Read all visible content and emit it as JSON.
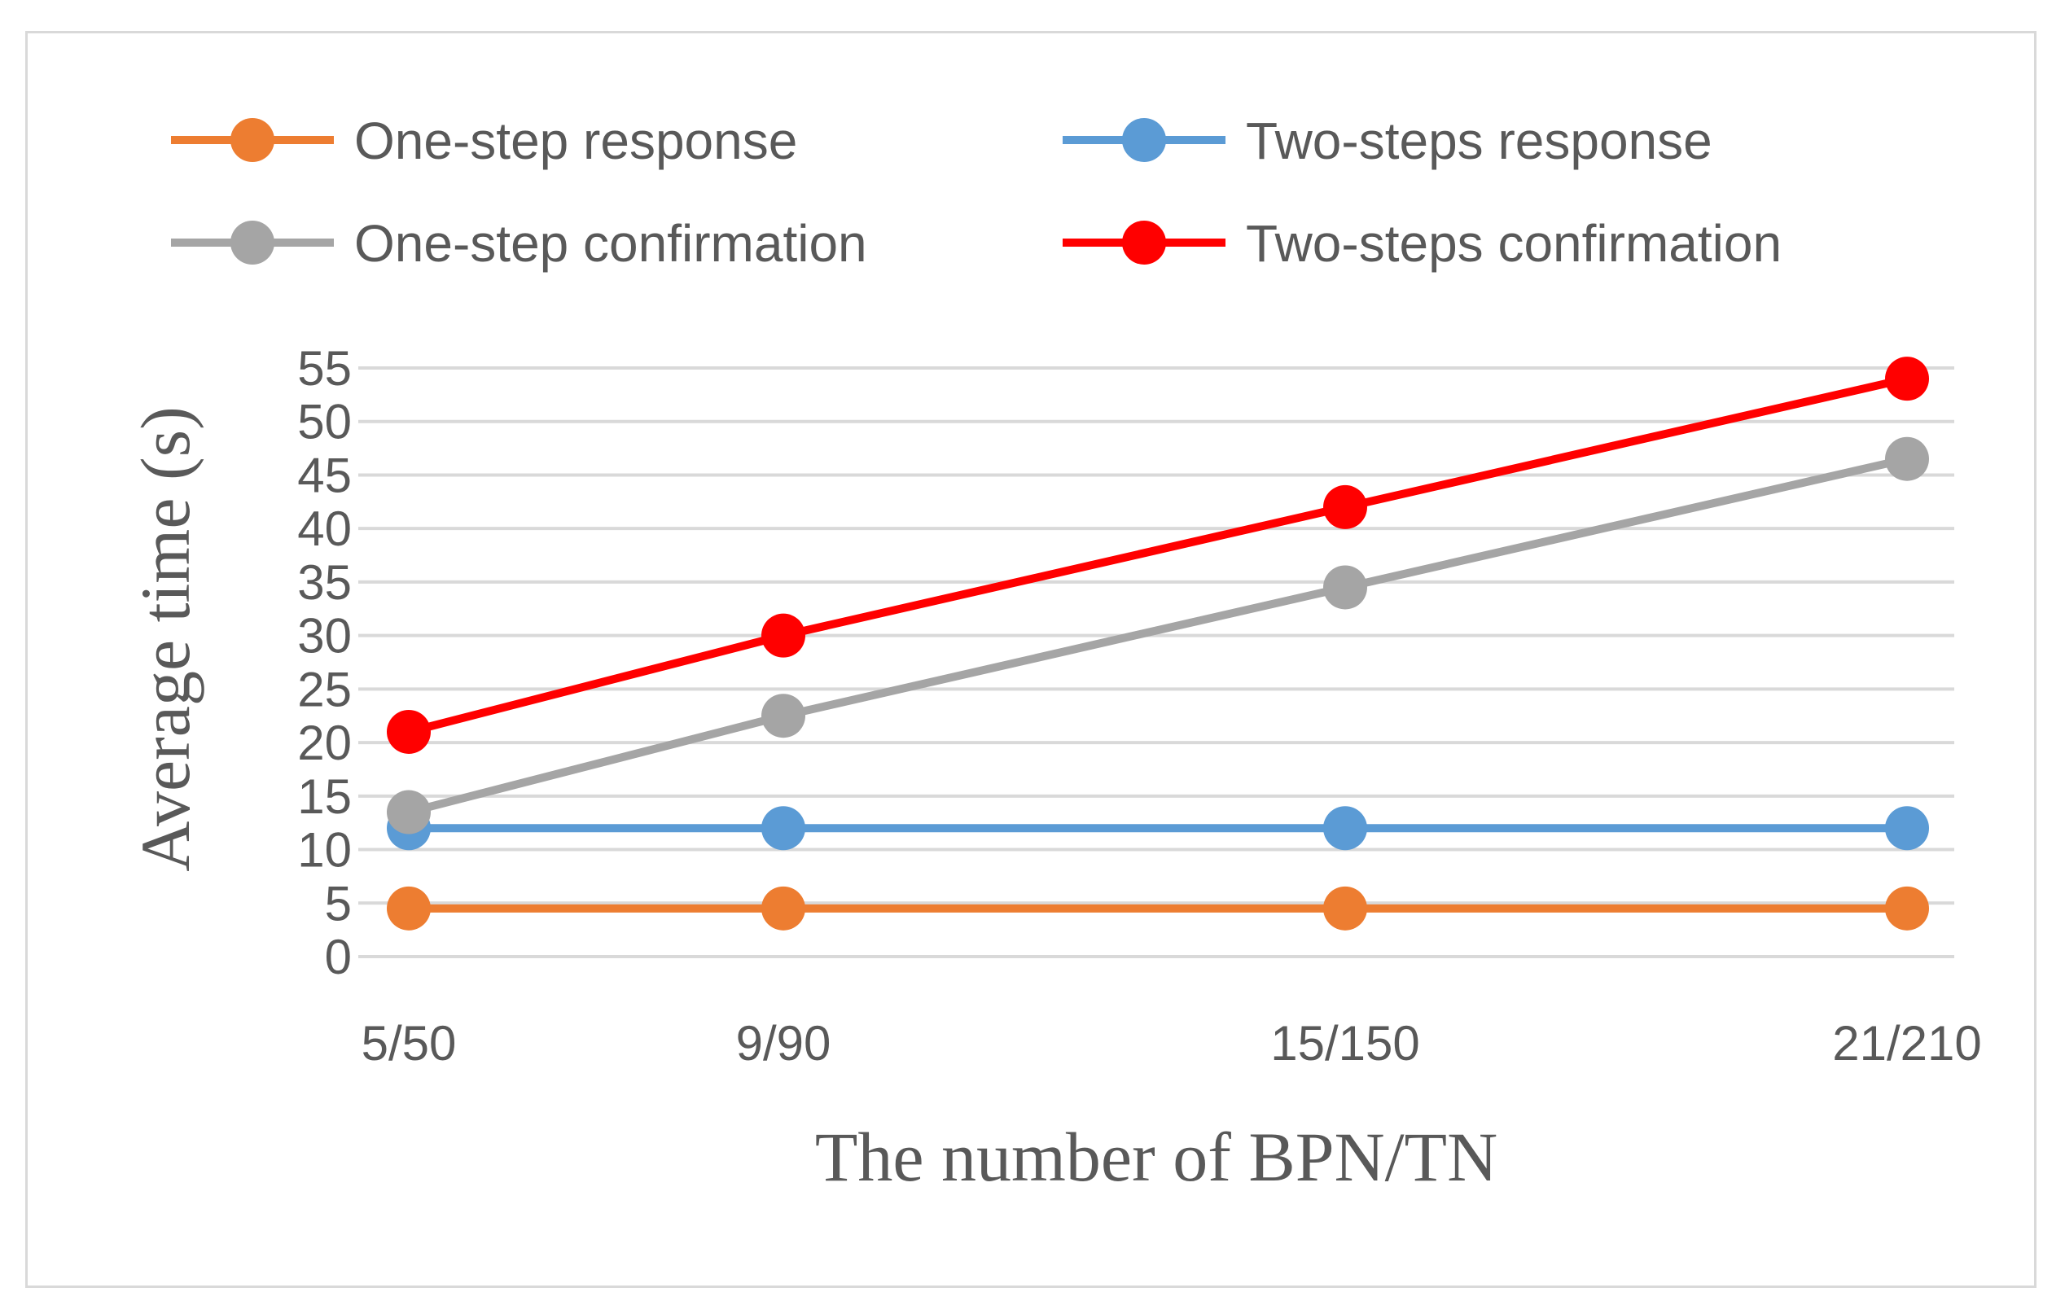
{
  "chart_data": {
    "type": "line",
    "title": "",
    "xlabel": "The number of BPN/TN",
    "ylabel": "Average time (s)",
    "categories": [
      "5/50",
      "9/90",
      "15/150",
      "21/210"
    ],
    "x": [
      5,
      9,
      15,
      21
    ],
    "ylim": [
      0,
      55
    ],
    "yticks": [
      0,
      5,
      10,
      15,
      20,
      25,
      30,
      35,
      40,
      45,
      50,
      55
    ],
    "ytick_labels": [
      "0",
      "5",
      "10",
      "15",
      "20",
      "25",
      "30",
      "35",
      "40",
      "45",
      "50",
      "55"
    ],
    "grid": "horizontal",
    "legend_position": "top",
    "series": [
      {
        "name": "One-step response",
        "color": "#ED7D31",
        "values": [
          4.5,
          4.5,
          4.5,
          4.5
        ]
      },
      {
        "name": "Two-steps response",
        "color": "#5B9BD5",
        "values": [
          12,
          12,
          12,
          12
        ]
      },
      {
        "name": "One-step confirmation",
        "color": "#A5A5A5",
        "values": [
          13.5,
          22.5,
          34.5,
          46.5
        ]
      },
      {
        "name": "Two-steps confirmation",
        "color": "#FF0000",
        "values": [
          21,
          30,
          42,
          54
        ]
      }
    ]
  }
}
